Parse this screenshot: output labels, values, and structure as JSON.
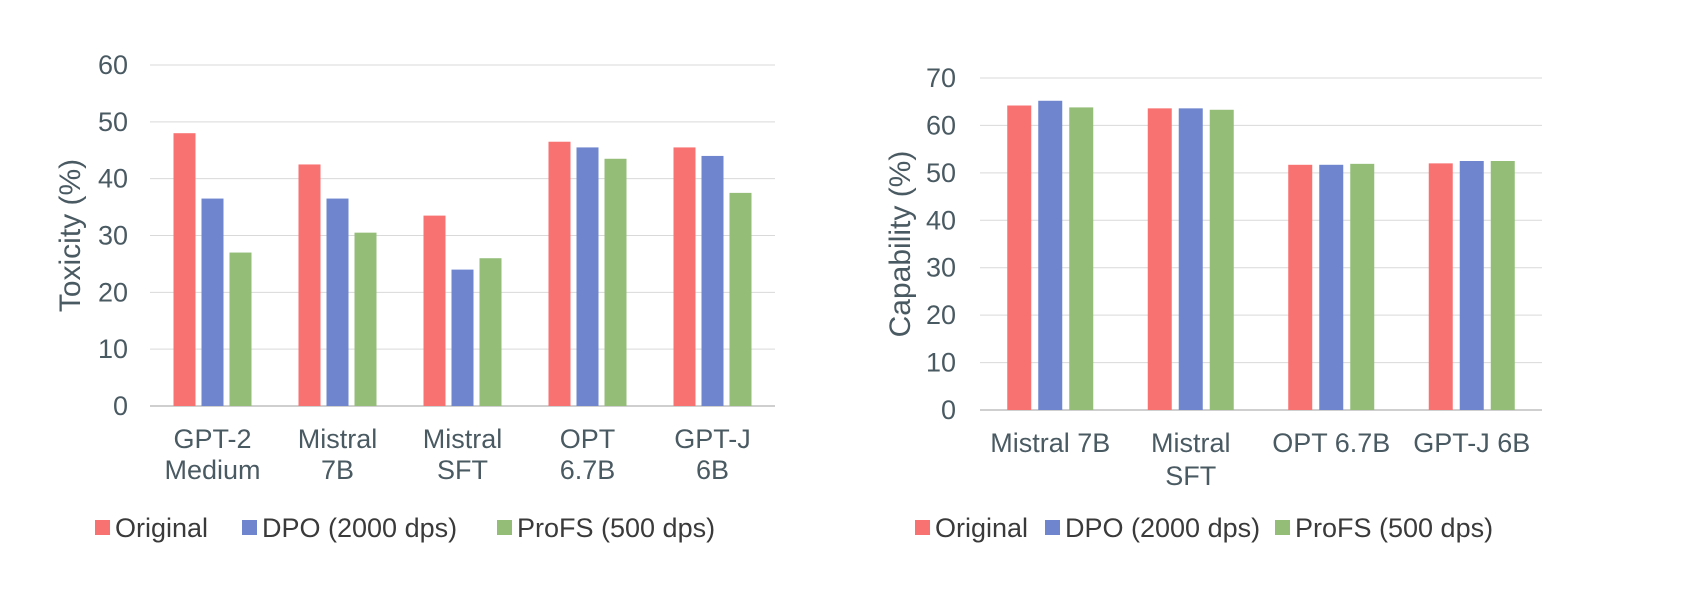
{
  "chart_data": [
    {
      "type": "bar",
      "categories": [
        [
          "GPT-2",
          "Medium"
        ],
        [
          "Mistral",
          "7B"
        ],
        [
          "Mistral",
          "SFT"
        ],
        [
          "OPT",
          "6.7B"
        ],
        [
          "GPT-J",
          "6B"
        ]
      ],
      "series": [
        {
          "name": "Original",
          "values": [
            48,
            42.5,
            33.5,
            46.5,
            45.5
          ],
          "color": "#f87272"
        },
        {
          "name": "DPO (2000 dps)",
          "values": [
            36.5,
            36.5,
            24,
            45.5,
            44
          ],
          "color": "#6f86cf"
        },
        {
          "name": "ProFS (500 dps)",
          "values": [
            27,
            30.5,
            26,
            43.5,
            37.5
          ],
          "color": "#94bd78"
        }
      ],
      "ylabel": "Toxicity (%)",
      "ylim": [
        0,
        60
      ],
      "yticks": [
        0,
        10,
        20,
        30,
        40,
        50,
        60
      ],
      "grid": true,
      "legend": "bottom"
    },
    {
      "type": "bar",
      "categories": [
        [
          "Mistral 7B"
        ],
        [
          "Mistral",
          "SFT"
        ],
        [
          "OPT 6.7B"
        ],
        [
          "GPT-J 6B"
        ]
      ],
      "series": [
        {
          "name": "Original",
          "values": [
            64.2,
            63.6,
            51.7,
            52
          ],
          "color": "#f87272"
        },
        {
          "name": "DPO (2000 dps)",
          "values": [
            65.2,
            63.6,
            51.7,
            52.5
          ],
          "color": "#6f86cf"
        },
        {
          "name": "ProFS (500 dps)",
          "values": [
            63.8,
            63.3,
            51.9,
            52.5
          ],
          "color": "#94bd78"
        }
      ],
      "ylabel": "Capability (%)",
      "ylim": [
        0,
        70
      ],
      "yticks": [
        0,
        10,
        20,
        30,
        40,
        50,
        60,
        70
      ],
      "grid": true,
      "legend": "bottom"
    }
  ]
}
